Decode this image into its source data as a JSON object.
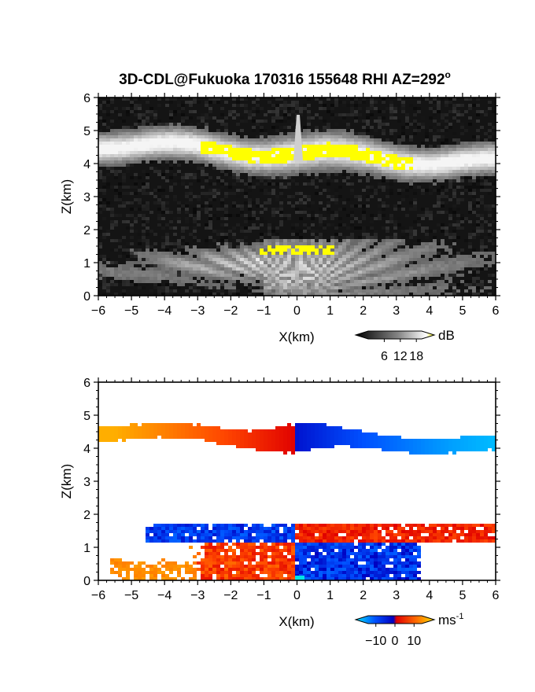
{
  "title": {
    "prefix": "3D-CDL@Fukuoka 170316 155648 RHI AZ=292",
    "sup": "o"
  },
  "chart_data": [
    {
      "type": "heatmap",
      "xlabel": "X(km)",
      "ylabel": "Z(km)",
      "xlim": [
        -6,
        6
      ],
      "ylim": [
        0,
        6
      ],
      "x_ticks": [
        -6,
        -5,
        -4,
        -3,
        -2,
        -1,
        0,
        1,
        2,
        3,
        4,
        5,
        6
      ],
      "y_ticks": [
        0,
        1,
        2,
        3,
        4,
        5,
        6
      ],
      "quantity": "signal-to-noise ratio",
      "colorbar": {
        "unit": "dB",
        "ticks": [
          "6",
          "12",
          "18"
        ],
        "colors": [
          "#000000",
          "#ffffff",
          "#ffff00"
        ],
        "range": [
          0,
          20
        ]
      },
      "features": [
        {
          "z_km": 4.3,
          "x_from": -6,
          "x_to": 6,
          "dz_km": 0.35
        },
        {
          "z_km": 1.0,
          "x_from": -5.5,
          "x_to": 6,
          "dz_km": 0.6
        }
      ]
    },
    {
      "type": "heatmap",
      "xlabel": "X(km)",
      "ylabel": "Z(km)",
      "xlim": [
        -6,
        6
      ],
      "ylim": [
        0,
        6
      ],
      "x_ticks": [
        -6,
        -5,
        -4,
        -3,
        -2,
        -1,
        0,
        1,
        2,
        3,
        4,
        5,
        6
      ],
      "y_ticks": [
        0,
        1,
        2,
        3,
        4,
        5,
        6
      ],
      "quantity": "radial velocity",
      "colorbar": {
        "unit": "ms",
        "unit_sup": "-1",
        "ticks": [
          "−10",
          "0",
          "10"
        ],
        "range": [
          -14,
          14
        ],
        "colors": [
          "#00e5ff",
          "#0050ff",
          "#0000c0",
          "#e00000",
          "#ff7000",
          "#ffe000"
        ]
      },
      "features": [
        {
          "z_km": 4.3,
          "x_from": -6,
          "x_to": 6,
          "v_left": 11,
          "v_right": -9
        },
        {
          "z_km": 1.4,
          "x_from": -4.5,
          "x_to": 6,
          "v_top_left": -6,
          "v_top_right": 6
        },
        {
          "z_km": 0.5,
          "x_from": -5.5,
          "x_to": 4,
          "v_left": 8,
          "v_right": -6
        }
      ]
    }
  ],
  "colors": {
    "background": "#ffffff",
    "axis": "#000000"
  }
}
